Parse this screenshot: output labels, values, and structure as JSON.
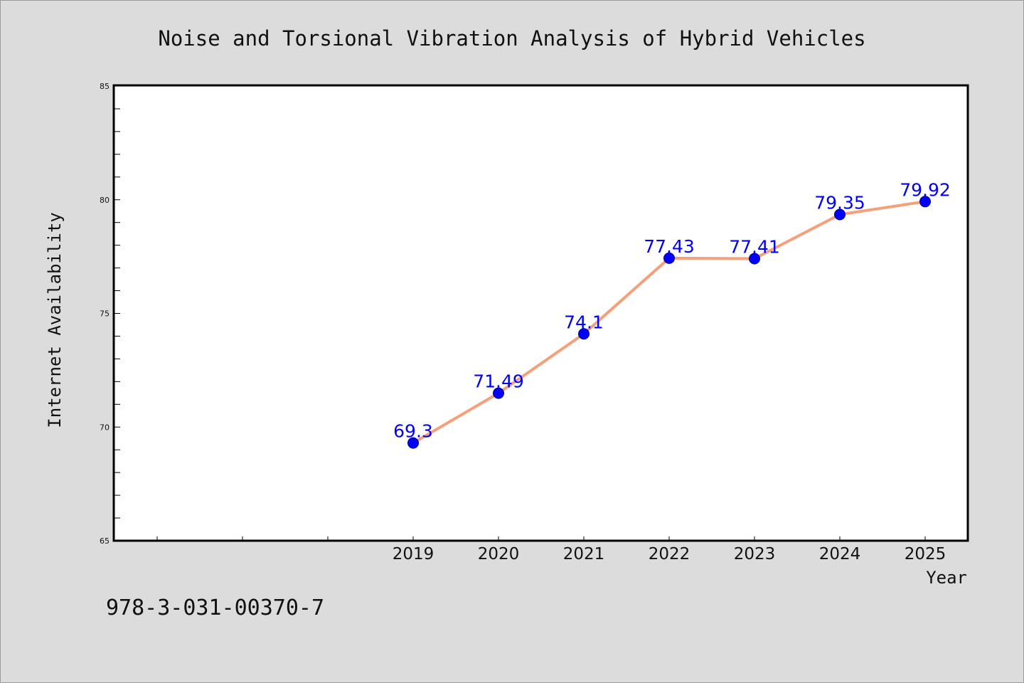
{
  "chart_data": {
    "type": "line",
    "title": "Noise and Torsional Vibration Analysis of Hybrid Vehicles",
    "xlabel": "Year",
    "ylabel": "Internet Availability",
    "categories": [
      "2019",
      "2020",
      "2021",
      "2022",
      "2023",
      "2024",
      "2025"
    ],
    "series": [
      {
        "values": [
          69.3,
          71.49,
          74.1,
          77.43,
          77.41,
          79.35,
          79.92
        ],
        "labels": [
          "69.3",
          "71.49",
          "74.1",
          "77.43",
          "77.41",
          "79.35",
          "79.92"
        ],
        "line_color": "#f4a07a",
        "marker_color": "#0000ff"
      }
    ],
    "ylim": [
      65,
      85
    ],
    "yticks": [
      "65",
      "70",
      "75",
      "80",
      "85"
    ],
    "grid": false,
    "legend": "none"
  },
  "footer": {
    "isbn": "978-3-031-00370-7"
  },
  "colors": {
    "background": "#dcdcdc",
    "plot_background": "#ffffff",
    "line": "#f4a07a",
    "marker": "#0000ff",
    "label": "#0000ff"
  }
}
